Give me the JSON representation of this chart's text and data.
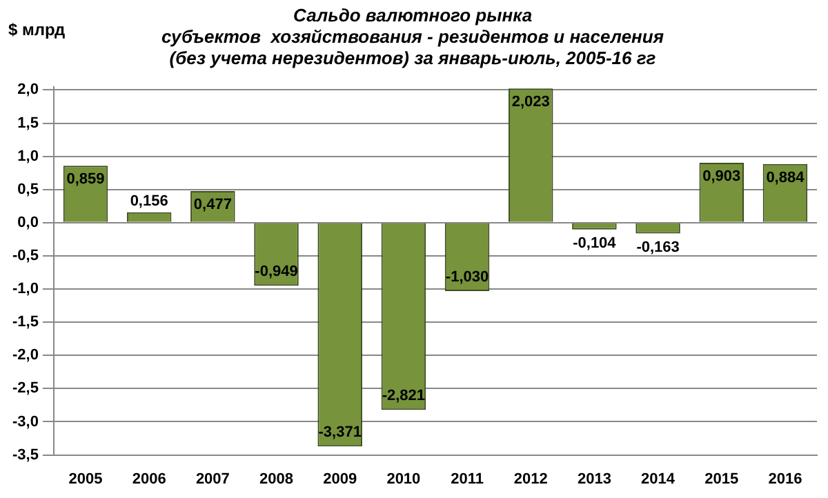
{
  "chart_data": {
    "type": "bar",
    "title": "Сальдо валютного рынка\nсубъектов  хозяйствования - резидентов и населения\n(без учета нерезидентов) за январь-июль, 2005-16 гг",
    "ylabel": "$ млрд",
    "categories": [
      "2005",
      "2006",
      "2007",
      "2008",
      "2009",
      "2010",
      "2011",
      "2012",
      "2013",
      "2014",
      "2015",
      "2016"
    ],
    "values": [
      0.859,
      0.156,
      0.477,
      -0.949,
      -3.371,
      -2.821,
      -1.03,
      2.023,
      -0.104,
      -0.163,
      0.903,
      0.884
    ],
    "value_labels": [
      "0,859",
      "0,156",
      "0,477",
      "-0,949",
      "-3,371",
      "-2,821",
      "-1,030",
      "2,023",
      "-0,104",
      "-0,163",
      "0,903",
      "0,884"
    ],
    "color": "#77933c",
    "ylim": [
      -3.5,
      2.05
    ],
    "yticks": [
      {
        "value": 2.0,
        "label": "2,0"
      },
      {
        "value": 1.5,
        "label": "1,5"
      },
      {
        "value": 1.0,
        "label": "1,0"
      },
      {
        "value": 0.5,
        "label": "0,5"
      },
      {
        "value": 0,
        "label": "0,0"
      },
      {
        "value": -0.5,
        "label": "-0,5"
      },
      {
        "value": -1.0,
        "label": "-1,0"
      },
      {
        "value": -1.5,
        "label": "-1,5"
      },
      {
        "value": -2.0,
        "label": "-2,0"
      },
      {
        "value": -2.5,
        "label": "-2,5"
      },
      {
        "value": -3.0,
        "label": "-3,0"
      },
      {
        "value": -3.5,
        "label": "-3,5"
      }
    ],
    "grid": "y",
    "legend": false
  }
}
